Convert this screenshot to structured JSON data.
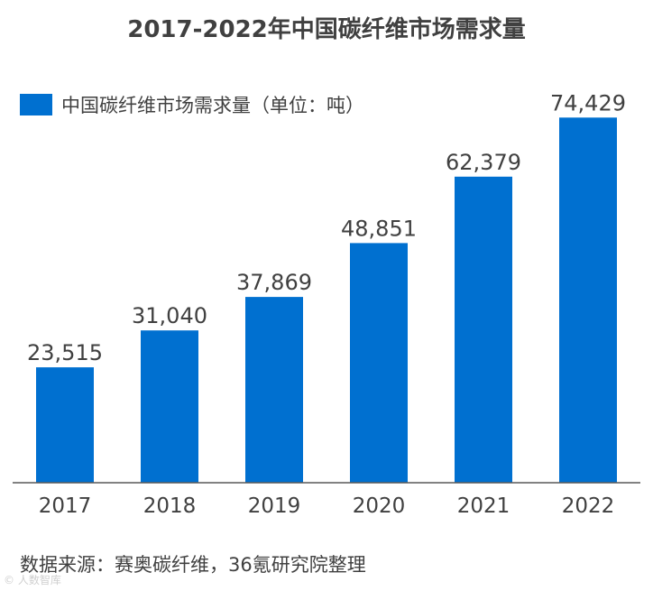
{
  "colors": {
    "bar": "#0070d0",
    "axis": "#595959",
    "text": "#404040"
  },
  "chart_data": {
    "type": "bar",
    "title": "2017-2022年中国碳纤维市场需求量",
    "categories": [
      "2017",
      "2018",
      "2019",
      "2020",
      "2021",
      "2022"
    ],
    "series": [
      {
        "name": "中国碳纤维市场需求量（单位：吨）",
        "values": [
          23515,
          31040,
          37869,
          48851,
          62379,
          74429
        ]
      }
    ],
    "data_labels": [
      "23,515",
      "31,040",
      "37,869",
      "48,851",
      "62,379",
      "74,429"
    ],
    "ylim": [
      0,
      80000
    ],
    "legend_position": "top-left",
    "grid": false
  },
  "source": "数据来源：赛奥碳纤维，36氪研究院整理",
  "watermark": "© 人数智库"
}
